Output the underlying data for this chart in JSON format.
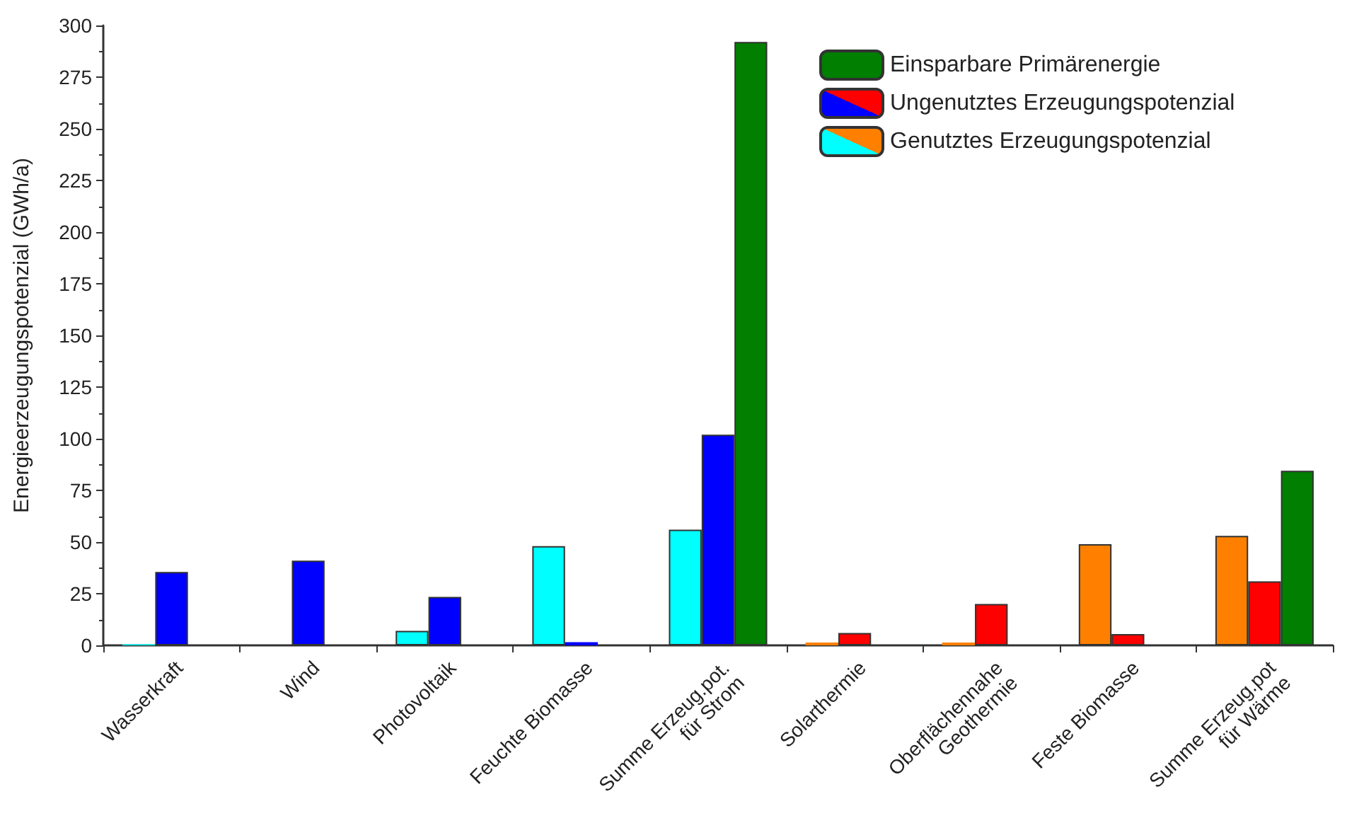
{
  "chart_data": {
    "type": "bar",
    "ylabel": "Energieerzeugungspotenzial (GWh/a)",
    "categories": [
      "Wasserkraft",
      "Wind",
      "Photovoltaik",
      "Feuchte Biomasse",
      "Summe Erzeug.pot.\nfür Strom",
      "Solarthermie",
      "Oberflächennahe\nGeothermie",
      "Feste Biomasse",
      "Summe Erzeug.pot\nfür Wärme"
    ],
    "series": [
      {
        "name": "Genutztes Erzeugungspotenzial",
        "colors": [
          "#00ffff",
          "#00ffff",
          "#00ffff",
          "#00ffff",
          "#00ffff",
          "#ff8000",
          "#ff8000",
          "#ff8000",
          "#ff8000"
        ],
        "values": [
          0.5,
          null,
          7,
          48,
          56,
          1.4,
          1.4,
          49,
          53
        ]
      },
      {
        "name": "Ungenutztes Erzeugungspotenzial",
        "colors": [
          "#0000ff",
          "#0000ff",
          "#0000ff",
          "#0000ff",
          "#0000ff",
          "#ff0000",
          "#ff0000",
          "#ff0000",
          "#ff0000"
        ],
        "values": [
          35.5,
          41,
          23.5,
          1.5,
          102,
          6,
          20,
          5.5,
          31
        ]
      },
      {
        "name": "Einsparbare Primärenergie",
        "color": "#007f00",
        "values": [
          null,
          null,
          null,
          null,
          292,
          null,
          null,
          null,
          84.5
        ]
      }
    ],
    "ylim": [
      0,
      300
    ],
    "yticks": [
      0,
      25,
      50,
      75,
      100,
      125,
      150,
      175,
      200,
      225,
      250,
      275,
      300
    ],
    "grid": false,
    "legend": "top right"
  }
}
